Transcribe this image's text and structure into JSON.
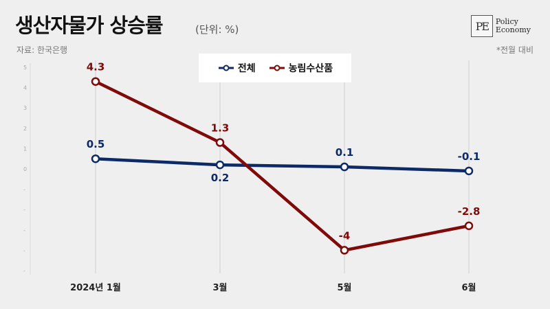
{
  "header": {
    "title": "생산자물가 상승률",
    "unit": "(단위: %)",
    "source": "자료: 한국은행",
    "note": "*전월 대비"
  },
  "logo": {
    "mark": "PE",
    "line1": "Policy",
    "line2": "Economy"
  },
  "colors": {
    "total": "#0d2a66",
    "agri": "#7f0a0a",
    "grid": "#cfcfcf"
  },
  "chart_data": {
    "type": "line",
    "categories": [
      "2024년 1월",
      "3월",
      "5월",
      "6월"
    ],
    "series": [
      {
        "name": "전체",
        "values": [
          0.5,
          0.2,
          0.1,
          -0.1
        ],
        "labels": [
          "0.5",
          "0.2",
          "0.1",
          "-0.1"
        ]
      },
      {
        "name": "농림수산품",
        "values": [
          4.3,
          1.3,
          -4,
          -2.8
        ],
        "labels": [
          "4.3",
          "1.3",
          "-4",
          "-2.8"
        ]
      }
    ],
    "ylim": [
      -5,
      5
    ],
    "yticks": [
      5,
      4,
      3,
      2,
      1,
      0,
      -1,
      -2,
      -3,
      -4,
      -5
    ],
    "ytick_labels": [
      "5",
      "4",
      "3",
      "2",
      "1",
      "0",
      "-",
      "-",
      "-",
      "-",
      "-"
    ],
    "grid": "vertical",
    "legend": "top-center"
  }
}
